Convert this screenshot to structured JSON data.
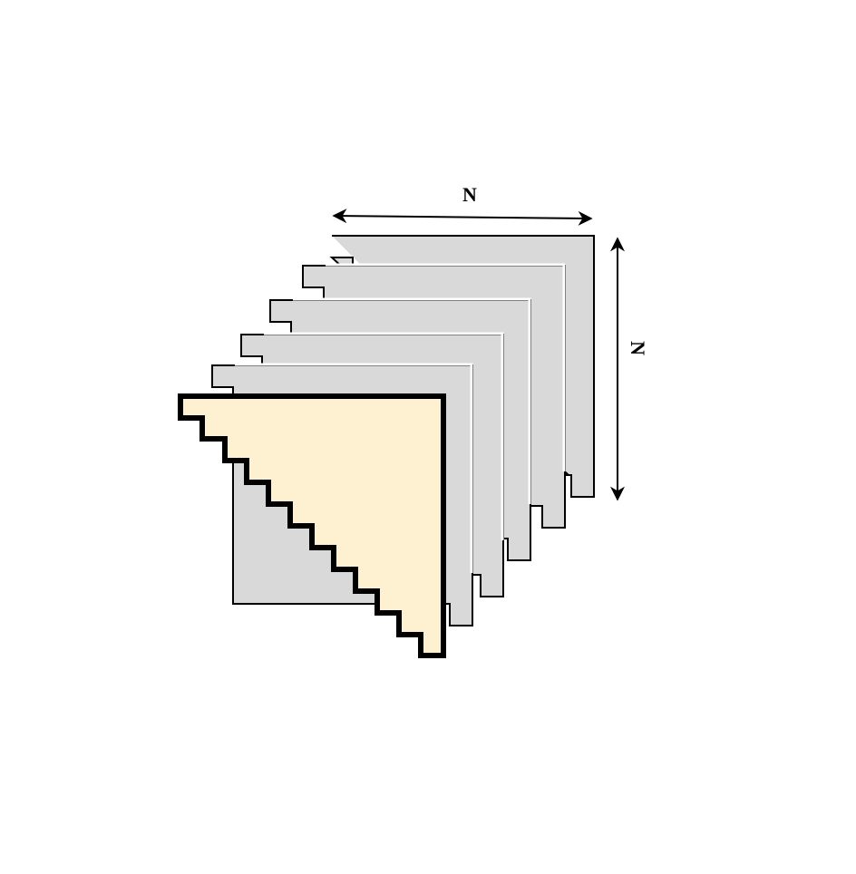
{
  "colors": {
    "background": "#ffffff",
    "back_sheet_fill": "#d9d9d9",
    "front_sheet_fill": "#fdf1d2",
    "outline": "#000000"
  },
  "diagram": {
    "back_sheet_count": 5,
    "front_sheet_staircase_steps": 11,
    "width_dimension_label": "N",
    "height_dimension_label": "N"
  }
}
